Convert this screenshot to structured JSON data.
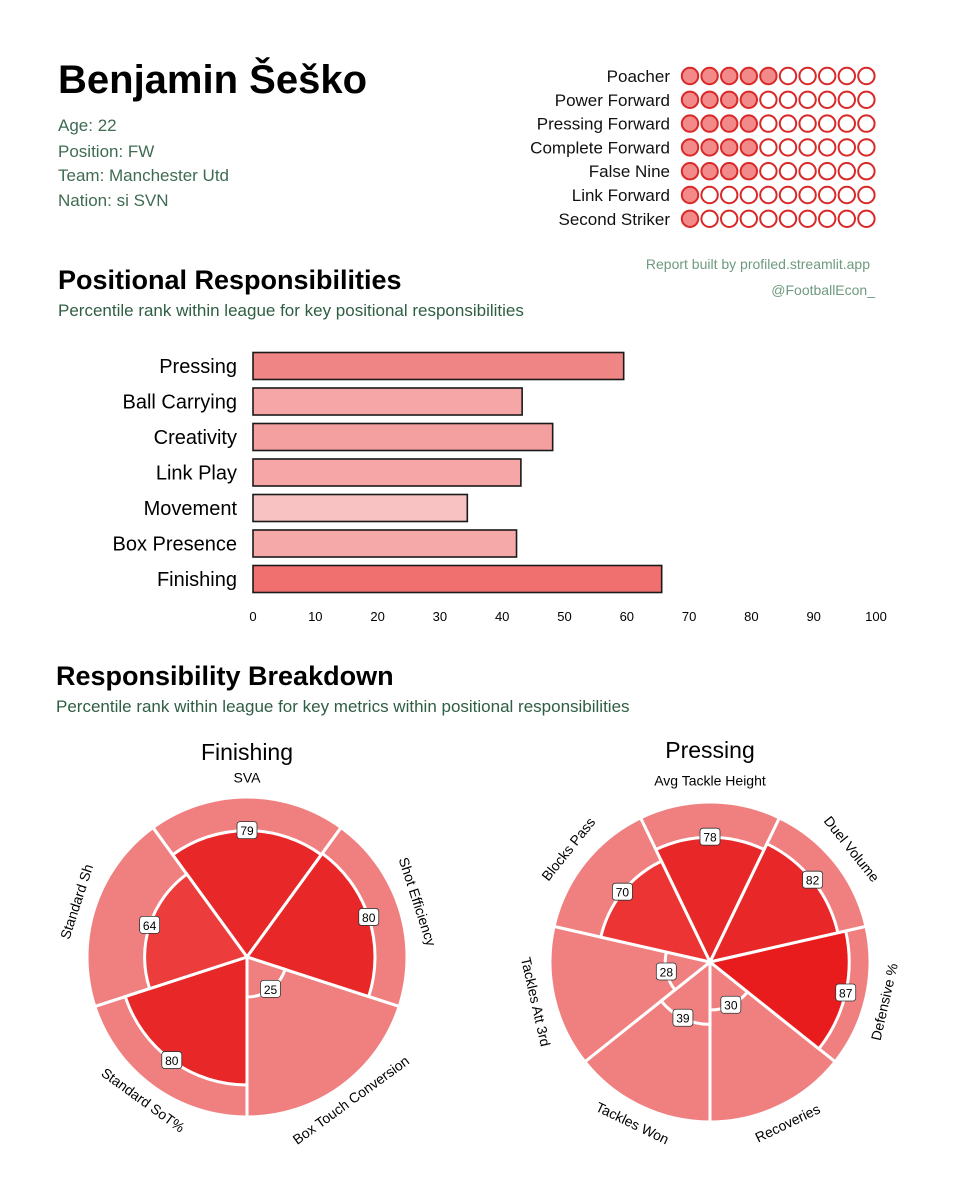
{
  "player": {
    "name": "Benjamin Šeško",
    "age": "Age: 22",
    "position": "Position: FW",
    "team": "Team: Manchester Utd",
    "nation": "Nation: si SVN"
  },
  "credits": {
    "report": "Report built by profiled.streamlit.app",
    "handle": "@FootballEcon_"
  },
  "roles": [
    {
      "name": "Poacher",
      "filled": 5
    },
    {
      "name": "Power Forward",
      "filled": 4
    },
    {
      "name": "Pressing Forward",
      "filled": 4
    },
    {
      "name": "Complete Forward",
      "filled": 4
    },
    {
      "name": "False Nine",
      "filled": 4
    },
    {
      "name": "Link Forward",
      "filled": 1
    },
    {
      "name": "Second Striker",
      "filled": 1
    }
  ],
  "roles_total_dots": 10,
  "colors": {
    "dot_fill": "#f28a8a",
    "dot_stroke": "#d92828",
    "bar_stroke": "#1a1a1a",
    "wedge_outer": "#f08080",
    "wedge_border": "#ffffff"
  },
  "section1": {
    "title": "Positional Responsibilities",
    "subtitle": "Percentile rank within league for key positional responsibilities"
  },
  "section2": {
    "title": "Responsibility Breakdown",
    "subtitle": "Percentile rank within league for key metrics within positional responsibilities"
  },
  "chart_data": [
    {
      "type": "bar",
      "orientation": "horizontal",
      "categories": [
        "Pressing",
        "Ball Carrying",
        "Creativity",
        "Link Play",
        "Movement",
        "Box Presence",
        "Finishing"
      ],
      "values": [
        59.5,
        43.2,
        48.1,
        43.0,
        34.4,
        42.3,
        65.6
      ],
      "xlim": [
        0,
        100
      ],
      "xticks": [
        0,
        10,
        20,
        30,
        40,
        50,
        60,
        70,
        80,
        90,
        100
      ],
      "colors": [
        "#f08585",
        "#f6a6a6",
        "#f4a0a0",
        "#f6a6a6",
        "#f8c2c2",
        "#f6a9a9",
        "#f07070"
      ]
    },
    {
      "type": "pie",
      "subtype": "polar-area",
      "title": "Finishing",
      "categories": [
        "SVA",
        "Shot Efficiency",
        "Box Touch Conversion",
        "Standard SoT%",
        "Standard Sh"
      ],
      "values": [
        79,
        80,
        25,
        80,
        64
      ],
      "colors": [
        "#e82828",
        "#e82828",
        "#f08080",
        "#e82828",
        "#ec3c3c"
      ]
    },
    {
      "type": "pie",
      "subtype": "polar-area",
      "title": "Pressing",
      "categories": [
        "Avg Tackle Height",
        "Duel Volume",
        "Defensive %",
        "Recoveries",
        "Tackles Won",
        "Tackles Att 3rd",
        "Blocks Pass"
      ],
      "values": [
        78,
        82,
        87,
        30,
        39,
        28,
        70
      ],
      "colors": [
        "#e82828",
        "#e82828",
        "#e81c1c",
        "#f08080",
        "#f08080",
        "#f08080",
        "#ec3434"
      ]
    }
  ]
}
